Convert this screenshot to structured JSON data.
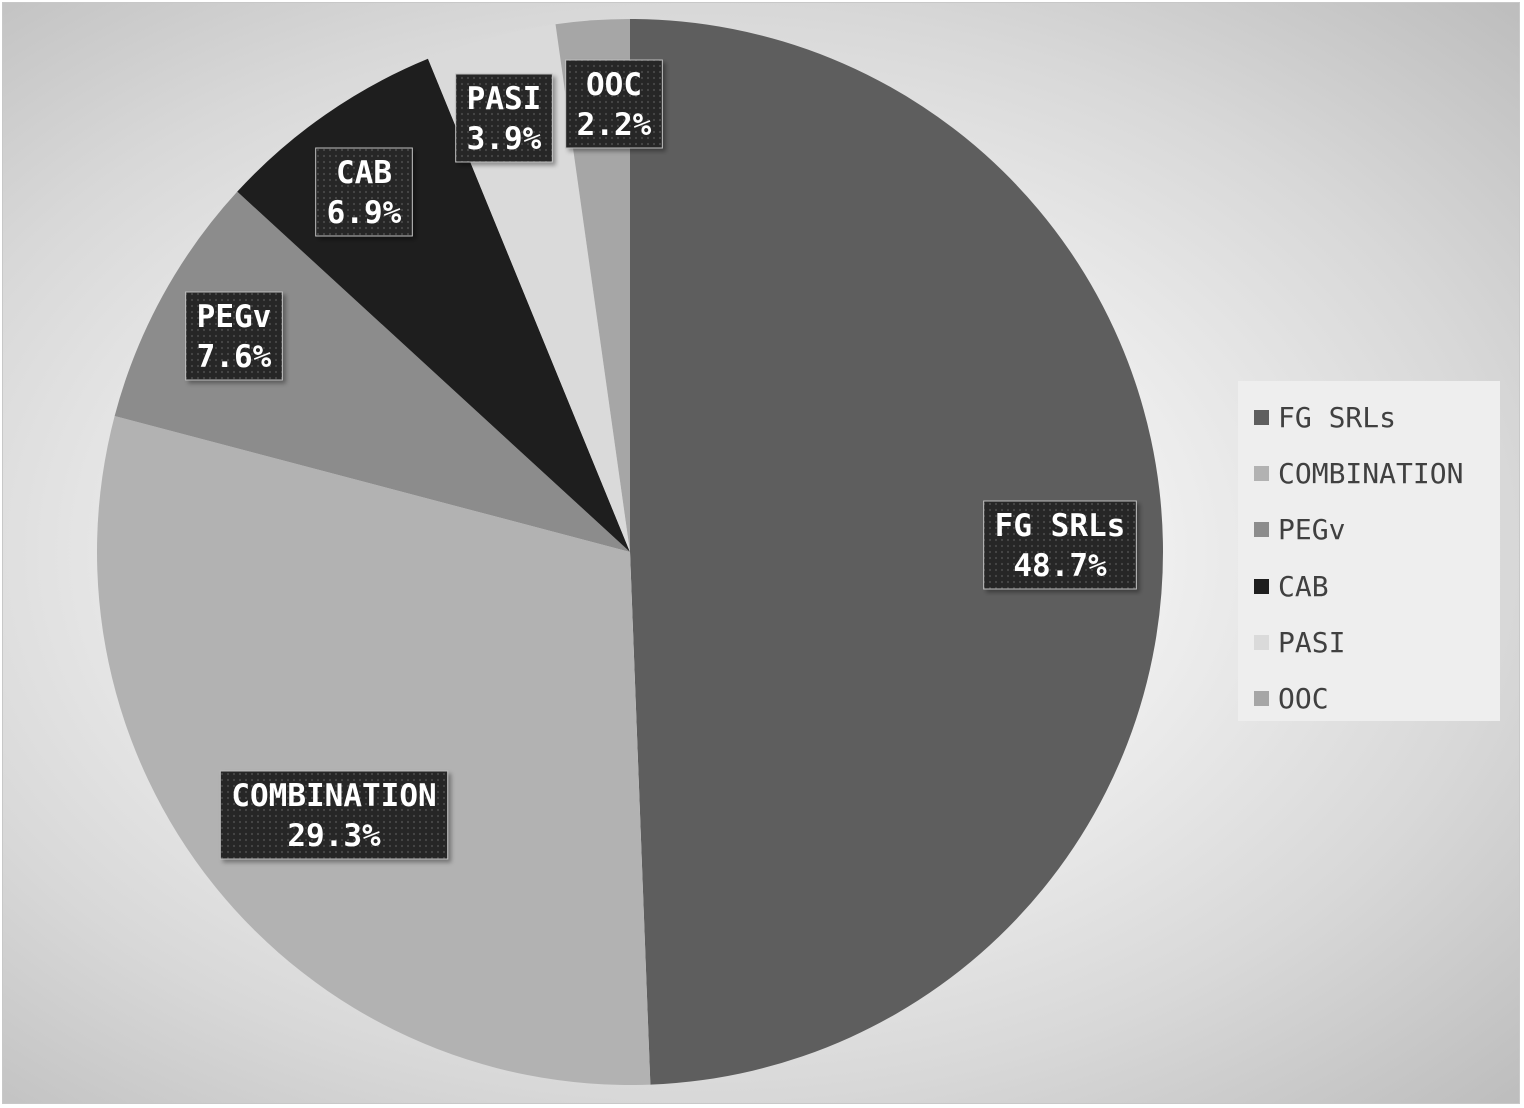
{
  "chart_data": {
    "type": "pie",
    "title": "",
    "start_angle_deg": 0,
    "direction": "clockwise",
    "legend_position": "right",
    "slices": [
      {
        "label": "FG SRLs",
        "value": 48.7,
        "display": "48.7%",
        "color": "#5e5e5e"
      },
      {
        "label": "COMBINATION",
        "value": 29.3,
        "display": "29.3%",
        "color": "#b2b2b2"
      },
      {
        "label": "PEGv",
        "value": 7.6,
        "display": "7.6%",
        "color": "#8c8c8c"
      },
      {
        "label": "CAB",
        "value": 6.9,
        "display": "6.9%",
        "color": "#1e1e1e"
      },
      {
        "label": "PASI",
        "value": 3.9,
        "display": "3.9%",
        "color": "#dadada"
      },
      {
        "label": "OOC",
        "value": 2.2,
        "display": "2.2%",
        "color": "#a6a6a6"
      }
    ]
  }
}
